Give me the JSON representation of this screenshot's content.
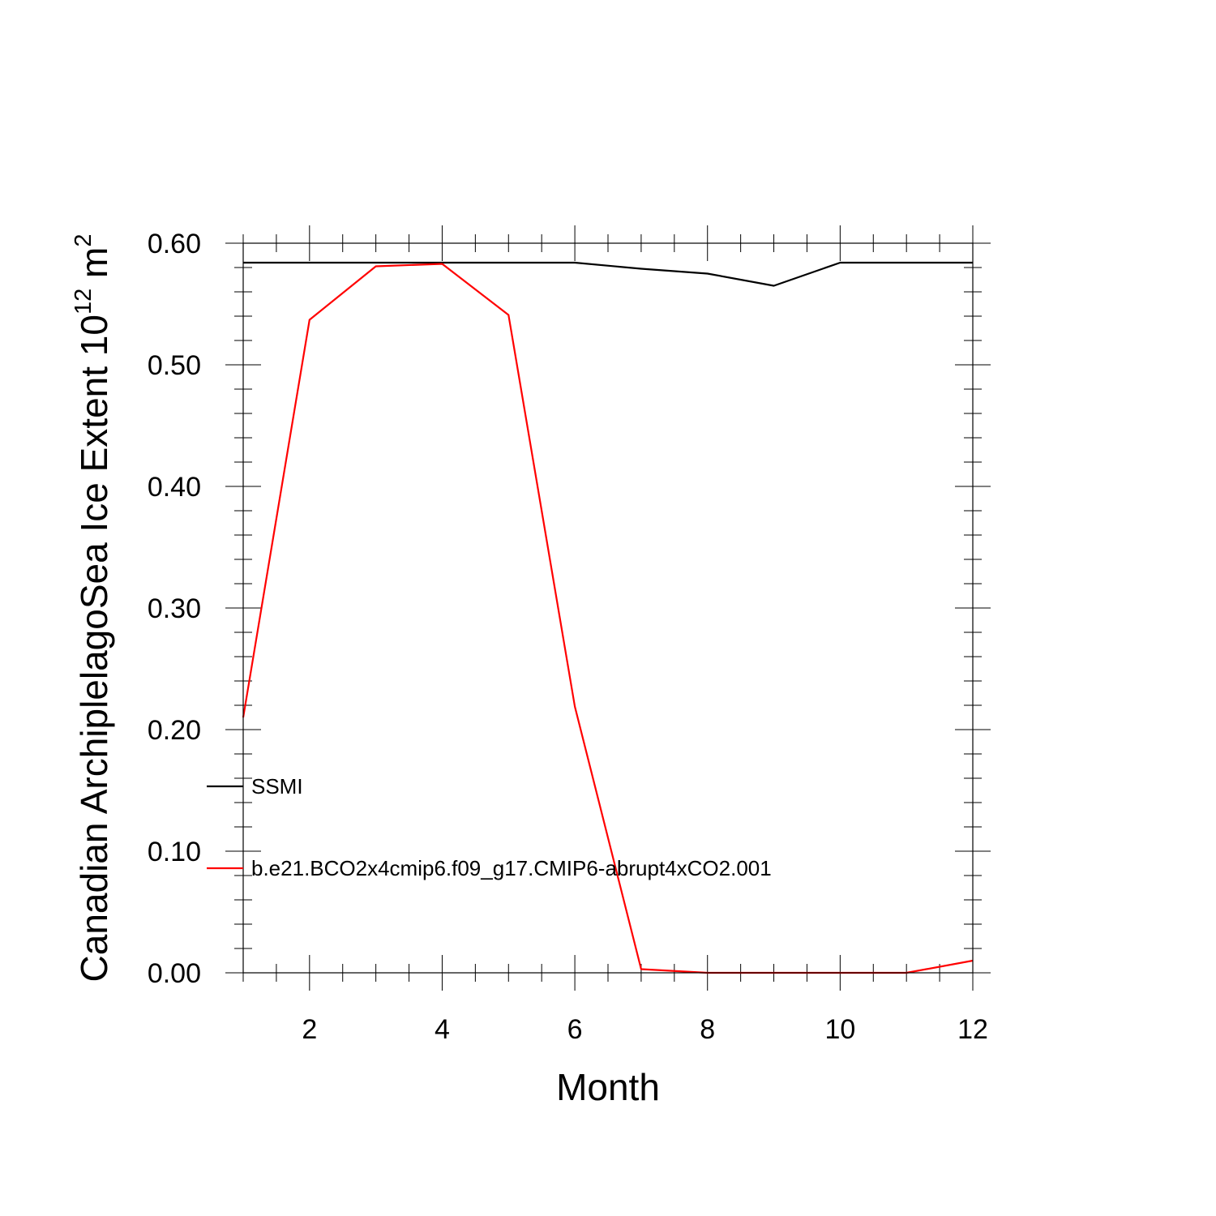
{
  "chart_data": {
    "type": "line",
    "title": "",
    "xlabel": "Month",
    "ylabel": "Canadian ArchiplelagoSea Ice Extent 10",
    "ylabel_exponent": "12",
    "ylabel_unit": " m",
    "ylabel_unit_exponent": "2",
    "xlim": [
      1,
      12
    ],
    "ylim": [
      0,
      0.6
    ],
    "x_ticks": [
      2,
      4,
      6,
      8,
      10,
      12
    ],
    "x_tick_labels": [
      "2",
      "4",
      "6",
      "8",
      "10",
      "12"
    ],
    "y_ticks": [
      0,
      0.1,
      0.2,
      0.3,
      0.4,
      0.5,
      0.6
    ],
    "y_tick_labels": [
      "0.00",
      "0.10",
      "0.20",
      "0.30",
      "0.40",
      "0.50",
      "0.60"
    ],
    "grid": false,
    "legend_position": "bottom-left",
    "x": [
      1,
      2,
      3,
      4,
      5,
      6,
      7,
      8,
      9,
      10,
      11,
      12
    ],
    "series": [
      {
        "name": "SSMI",
        "color": "#000000",
        "values": [
          0.584,
          0.584,
          0.584,
          0.584,
          0.584,
          0.584,
          0.579,
          0.575,
          0.565,
          0.584,
          0.584,
          0.584
        ]
      },
      {
        "name": "b.e21.BCO2x4cmip6.f09_g17.CMIP6-abrupt4xCO2.001",
        "color": "#ff0000",
        "values": [
          0.21,
          0.537,
          0.581,
          0.583,
          0.541,
          0.219,
          0.003,
          0.0,
          0.0,
          0.0,
          0.0,
          0.01
        ]
      }
    ]
  }
}
